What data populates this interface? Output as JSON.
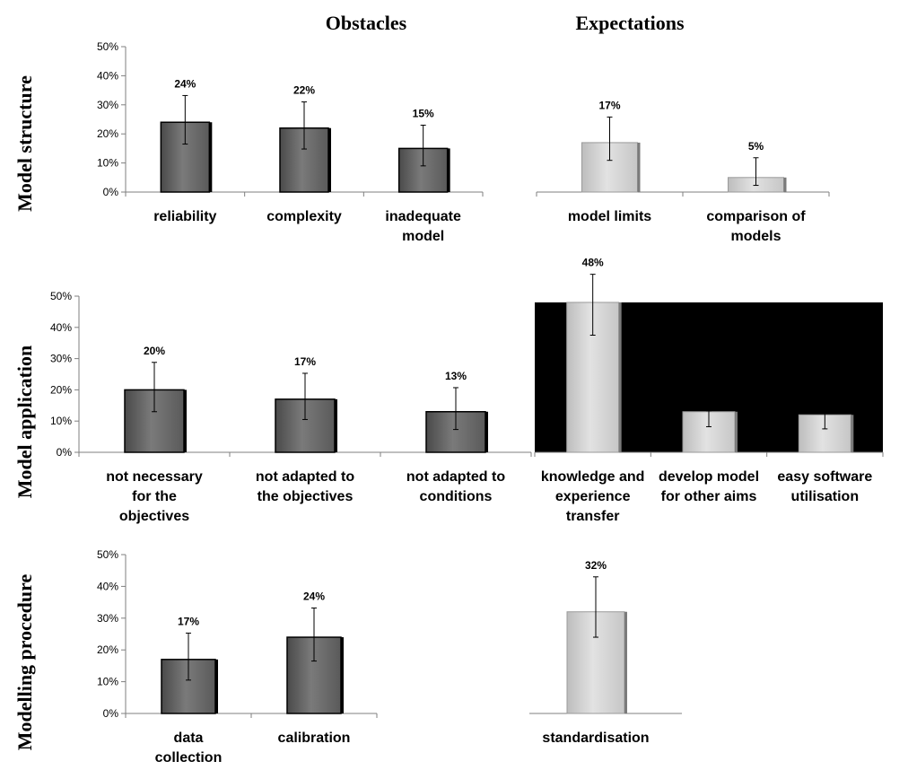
{
  "column_titles": [
    "Obstacles",
    "Expectations"
  ],
  "row_titles": [
    "Model structure",
    "Model application",
    "Modelling procedure"
  ],
  "colors": {
    "obstacle_bar": "#6e6e6e",
    "expectation_bar": "#d0d0d0",
    "axis": "#7f7f7f",
    "plot_fill": "#000000"
  },
  "chart_data": [
    {
      "type": "bar",
      "row": "Model structure",
      "panel": "Obstacles",
      "categories": [
        [
          "reliability"
        ],
        [
          "complexity"
        ],
        [
          "inadequate",
          "model"
        ]
      ],
      "values": [
        24,
        22,
        15
      ],
      "data_labels": [
        "24%",
        "22%",
        "15%"
      ],
      "error_low": [
        16.5,
        14.8,
        9
      ],
      "error_high": [
        33.2,
        31,
        23
      ],
      "ylim": [
        0,
        50
      ],
      "yticks": [
        "0%",
        "10%",
        "20%",
        "30%",
        "40%",
        "50%"
      ]
    },
    {
      "type": "bar",
      "row": "Model structure",
      "panel": "Expectations",
      "categories": [
        [
          "model limits"
        ],
        [
          "comparison of",
          "models"
        ]
      ],
      "values": [
        17,
        5
      ],
      "data_labels": [
        "17%",
        "5%"
      ],
      "error_low": [
        10.9,
        2.3
      ],
      "error_high": [
        25.8,
        11.8
      ],
      "ylim": [
        0,
        50
      ],
      "yticks": []
    },
    {
      "type": "bar",
      "row": "Model application",
      "panel": "Obstacles",
      "categories": [
        [
          "not necessary",
          "for the",
          "objectives"
        ],
        [
          "not adapted to",
          "the objectives"
        ],
        [
          "not adapted to",
          "conditions"
        ]
      ],
      "values": [
        20,
        17,
        13
      ],
      "data_labels": [
        "20%",
        "17%",
        "13%"
      ],
      "error_low": [
        13,
        10.5,
        7.3
      ],
      "error_high": [
        28.8,
        25.3,
        20.7
      ],
      "ylim": [
        0,
        50
      ],
      "yticks": [
        "0%",
        "10%",
        "20%",
        "30%",
        "40%",
        "50%"
      ]
    },
    {
      "type": "bar",
      "row": "Model application",
      "panel": "Expectations",
      "categories": [
        [
          "knowledge and",
          "experience",
          "transfer"
        ],
        [
          "develop model",
          "for other aims"
        ],
        [
          "easy software",
          "utilisation"
        ]
      ],
      "values": [
        48,
        13,
        12
      ],
      "data_labels": [
        "48%",
        "",
        ""
      ],
      "error_low": [
        37.5,
        8.2,
        7.5
      ],
      "error_high": [
        57,
        13.3,
        12.5
      ],
      "ylim": [
        0,
        50
      ],
      "yticks": []
    },
    {
      "type": "bar",
      "row": "Modelling procedure",
      "panel": "Obstacles",
      "categories": [
        [
          "data",
          "collection"
        ],
        [
          "calibration"
        ]
      ],
      "values": [
        17,
        24
      ],
      "data_labels": [
        "17%",
        "24%"
      ],
      "error_low": [
        10.5,
        16.5
      ],
      "error_high": [
        25.3,
        33.2
      ],
      "ylim": [
        0,
        50
      ],
      "yticks": [
        "0%",
        "10%",
        "20%",
        "30%",
        "40%",
        "50%"
      ]
    },
    {
      "type": "bar",
      "row": "Modelling procedure",
      "panel": "Expectations",
      "categories": [
        [
          "standardisation"
        ]
      ],
      "values": [
        32
      ],
      "data_labels": [
        "32%"
      ],
      "error_low": [
        24
      ],
      "error_high": [
        43
      ],
      "ylim": [
        0,
        50
      ],
      "yticks": []
    }
  ]
}
